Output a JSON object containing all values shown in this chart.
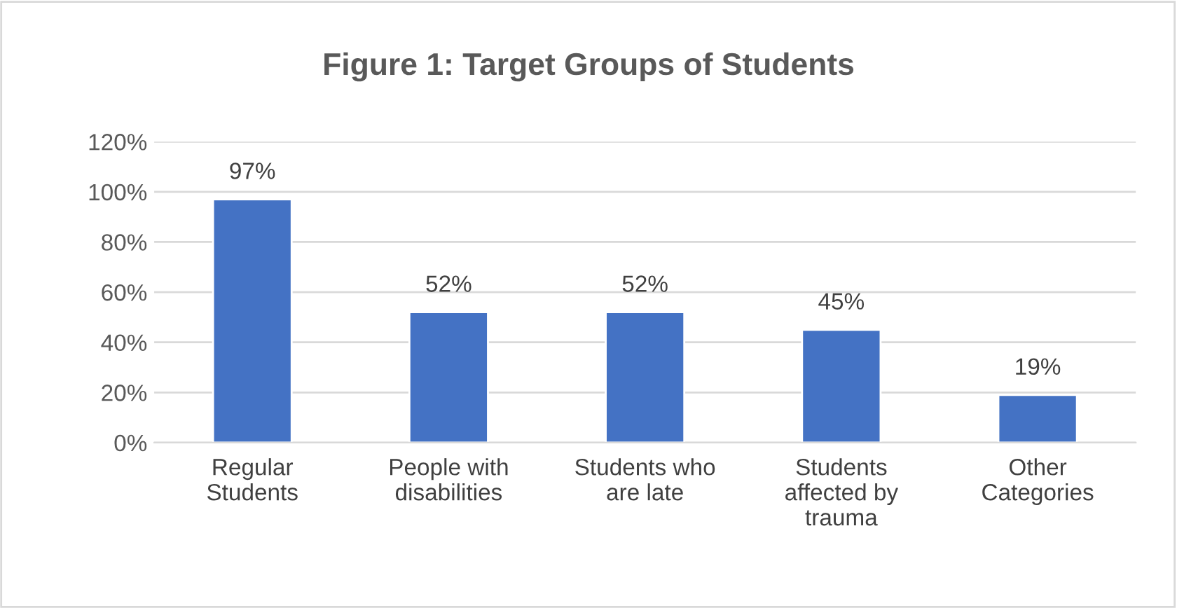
{
  "chart_data": {
    "type": "bar",
    "title": "Figure 1: Target Groups of Students",
    "categories": [
      "Regular\nStudents",
      "People with\ndisabilities",
      "Students who\nare late",
      "Students\naffected by\ntrauma",
      "Other\nCategories"
    ],
    "values": [
      97,
      52,
      52,
      45,
      19
    ],
    "value_labels": [
      "97%",
      "52%",
      "52%",
      "45%",
      "19%"
    ],
    "color": "#4472c4",
    "ylim": [
      0,
      120
    ],
    "yticks": [
      {
        "value": 0,
        "label": "0%"
      },
      {
        "value": 20,
        "label": "20%"
      },
      {
        "value": 40,
        "label": "40%"
      },
      {
        "value": 60,
        "label": "60%"
      },
      {
        "value": 80,
        "label": "80%"
      },
      {
        "value": 100,
        "label": "100%"
      },
      {
        "value": 120,
        "label": "120%"
      }
    ],
    "grid": "y",
    "legend": false
  }
}
